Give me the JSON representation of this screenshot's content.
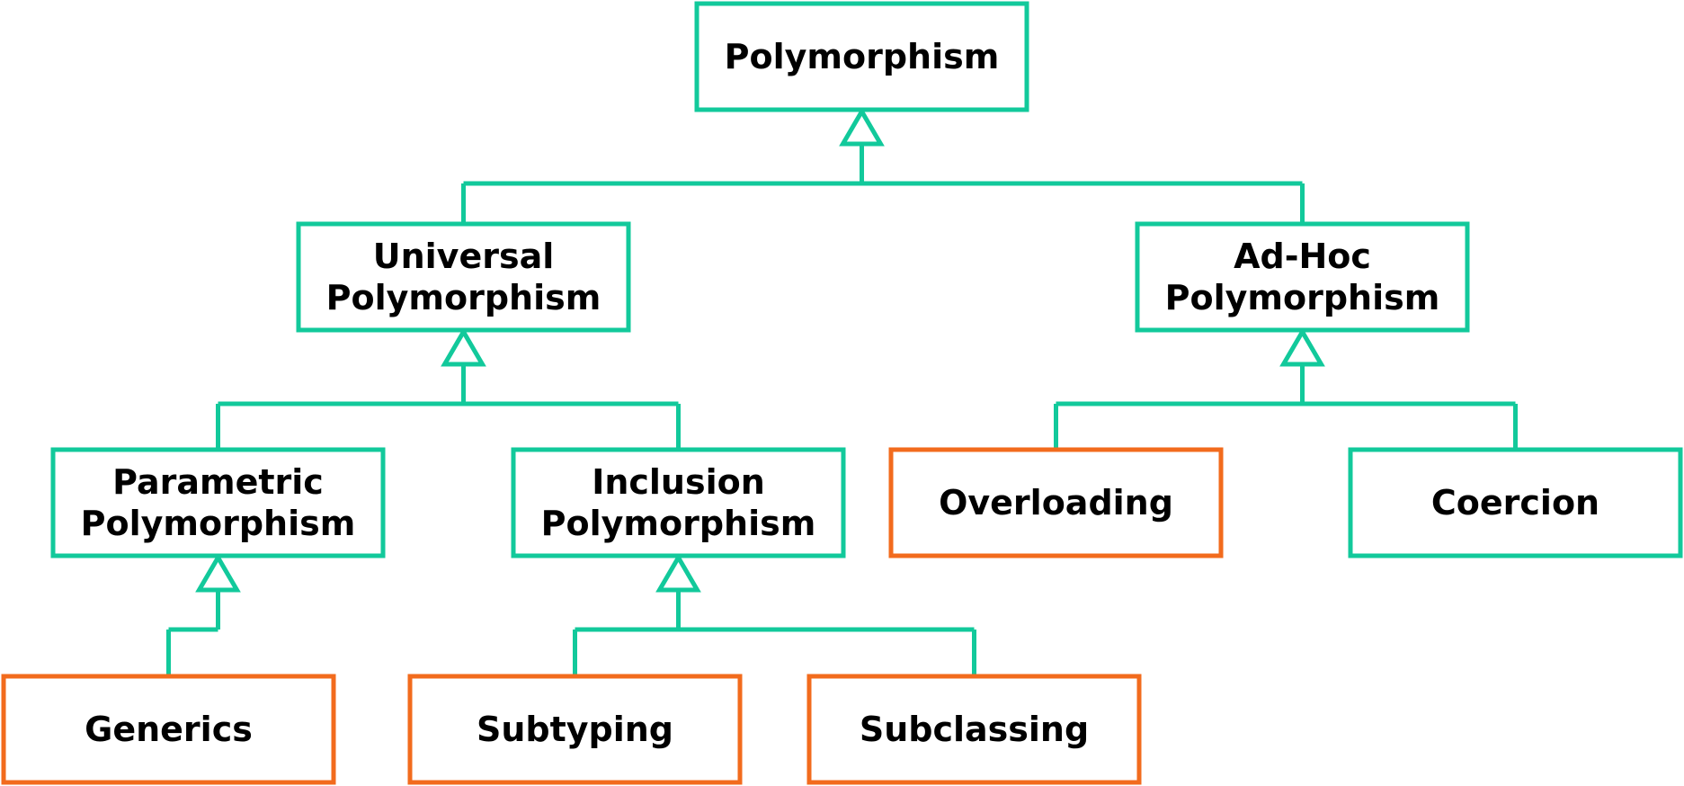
{
  "colors": {
    "abstract": "#12c99b",
    "concrete": "#f26b1d",
    "text": "#000000",
    "background": "#ffffff"
  },
  "nodes": [
    {
      "id": "polymorphism",
      "lines": [
        "Polymorphism"
      ],
      "kind": "abstract"
    },
    {
      "id": "universal",
      "lines": [
        "Universal",
        "Polymorphism"
      ],
      "kind": "abstract"
    },
    {
      "id": "adhoc",
      "lines": [
        "Ad-Hoc",
        "Polymorphism"
      ],
      "kind": "abstract"
    },
    {
      "id": "parametric",
      "lines": [
        "Parametric",
        "Polymorphism"
      ],
      "kind": "abstract"
    },
    {
      "id": "inclusion",
      "lines": [
        "Inclusion",
        "Polymorphism"
      ],
      "kind": "abstract"
    },
    {
      "id": "overloading",
      "lines": [
        "Overloading"
      ],
      "kind": "concrete"
    },
    {
      "id": "coercion",
      "lines": [
        "Coercion"
      ],
      "kind": "abstract"
    },
    {
      "id": "generics",
      "lines": [
        "Generics"
      ],
      "kind": "concrete"
    },
    {
      "id": "subtyping",
      "lines": [
        "Subtyping"
      ],
      "kind": "concrete"
    },
    {
      "id": "subclassing",
      "lines": [
        "Subclassing"
      ],
      "kind": "concrete"
    }
  ],
  "edges": [
    {
      "parent": "polymorphism",
      "children": [
        "universal",
        "adhoc"
      ]
    },
    {
      "parent": "universal",
      "children": [
        "parametric",
        "inclusion"
      ]
    },
    {
      "parent": "adhoc",
      "children": [
        "overloading",
        "coercion"
      ]
    },
    {
      "parent": "parametric",
      "children": [
        "generics"
      ]
    },
    {
      "parent": "inclusion",
      "children": [
        "subtyping",
        "subclassing"
      ]
    }
  ]
}
